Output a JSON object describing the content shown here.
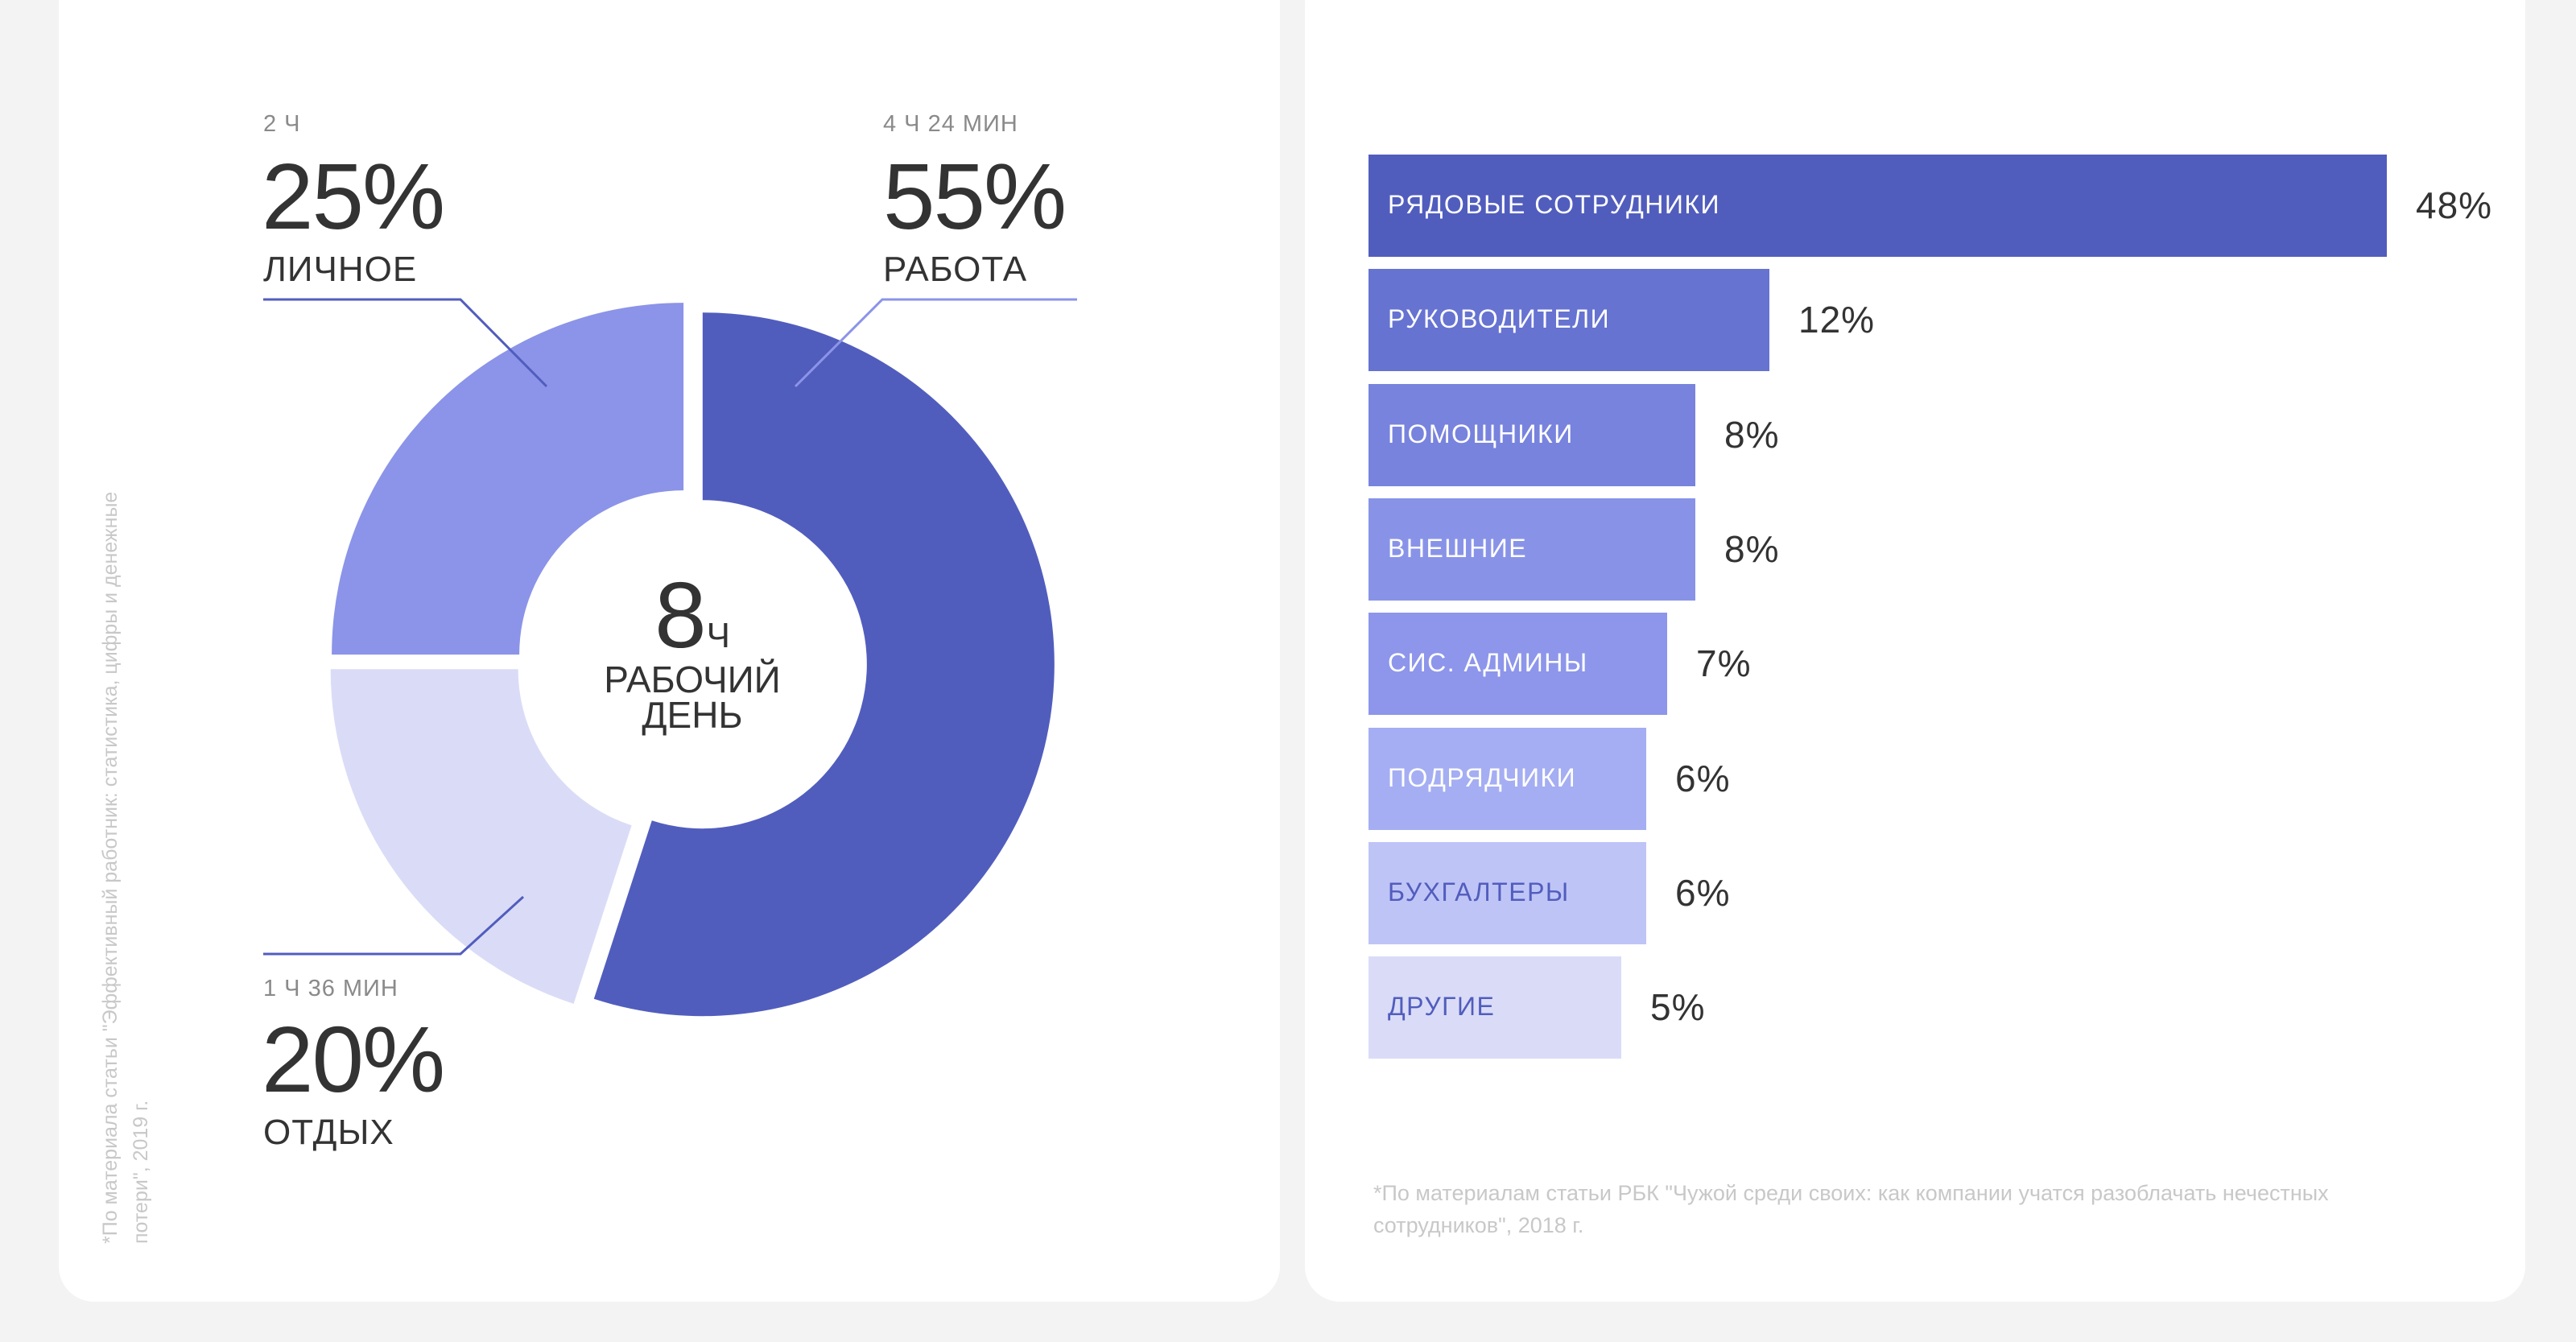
{
  "chart_data": [
    {
      "type": "pie",
      "variant": "donut",
      "center": {
        "value": "8",
        "unit": "Ч",
        "label_line1": "РАБОЧИЙ",
        "label_line2": "ДЕНЬ"
      },
      "slices": [
        {
          "name": "РАБОТА",
          "percent_label": "55%",
          "duration": "4 Ч 24 МИН",
          "value": 55,
          "color": "#515dbd"
        },
        {
          "name": "ОТДЫХ",
          "percent_label": "20%",
          "duration": "1 Ч 36 МИН",
          "value": 20,
          "color": "#dadcf7"
        },
        {
          "name": "ЛИЧНОЕ",
          "percent_label": "25%",
          "duration": "2 Ч",
          "value": 25,
          "color": "#8b94e8"
        }
      ],
      "footnote": "*По материала статьи \"Эффективный работник: статистика, цифры и денежные потери\", 2019 г."
    },
    {
      "type": "bar",
      "orientation": "horizontal",
      "categories": [
        "РЯДОВЫЕ СОТРУДНИКИ",
        "РУКОВОДИТЕЛИ",
        "ПОМОЩНИКИ",
        "ВНЕШНИЕ",
        "СИС. АДМИНЫ",
        "ПОДРЯДЧИКИ",
        "БУХГАЛТЕРЫ",
        "ДРУГИЕ"
      ],
      "values": [
        48,
        12,
        8,
        8,
        7,
        6,
        6,
        5
      ],
      "value_labels": [
        "48%",
        "12%",
        "8%",
        "8%",
        "7%",
        "6%",
        "6%",
        "5%"
      ],
      "colors": [
        "#515dbd",
        "#6673d1",
        "#7883dd",
        "#8893e8",
        "#8d96ea",
        "#a5aef2",
        "#bfc4f7",
        "#dadcf7"
      ],
      "label_colors": [
        "#ffffff",
        "#ffffff",
        "#ffffff",
        "#ffffff",
        "#ffffff",
        "#ffffff",
        "#515dbd",
        "#515dbd"
      ],
      "footnote": "*По материалам статьи РБК \"Чужой среди своих: как компании учатся разоблачать нечестных сотрудников\", 2018 г."
    }
  ]
}
